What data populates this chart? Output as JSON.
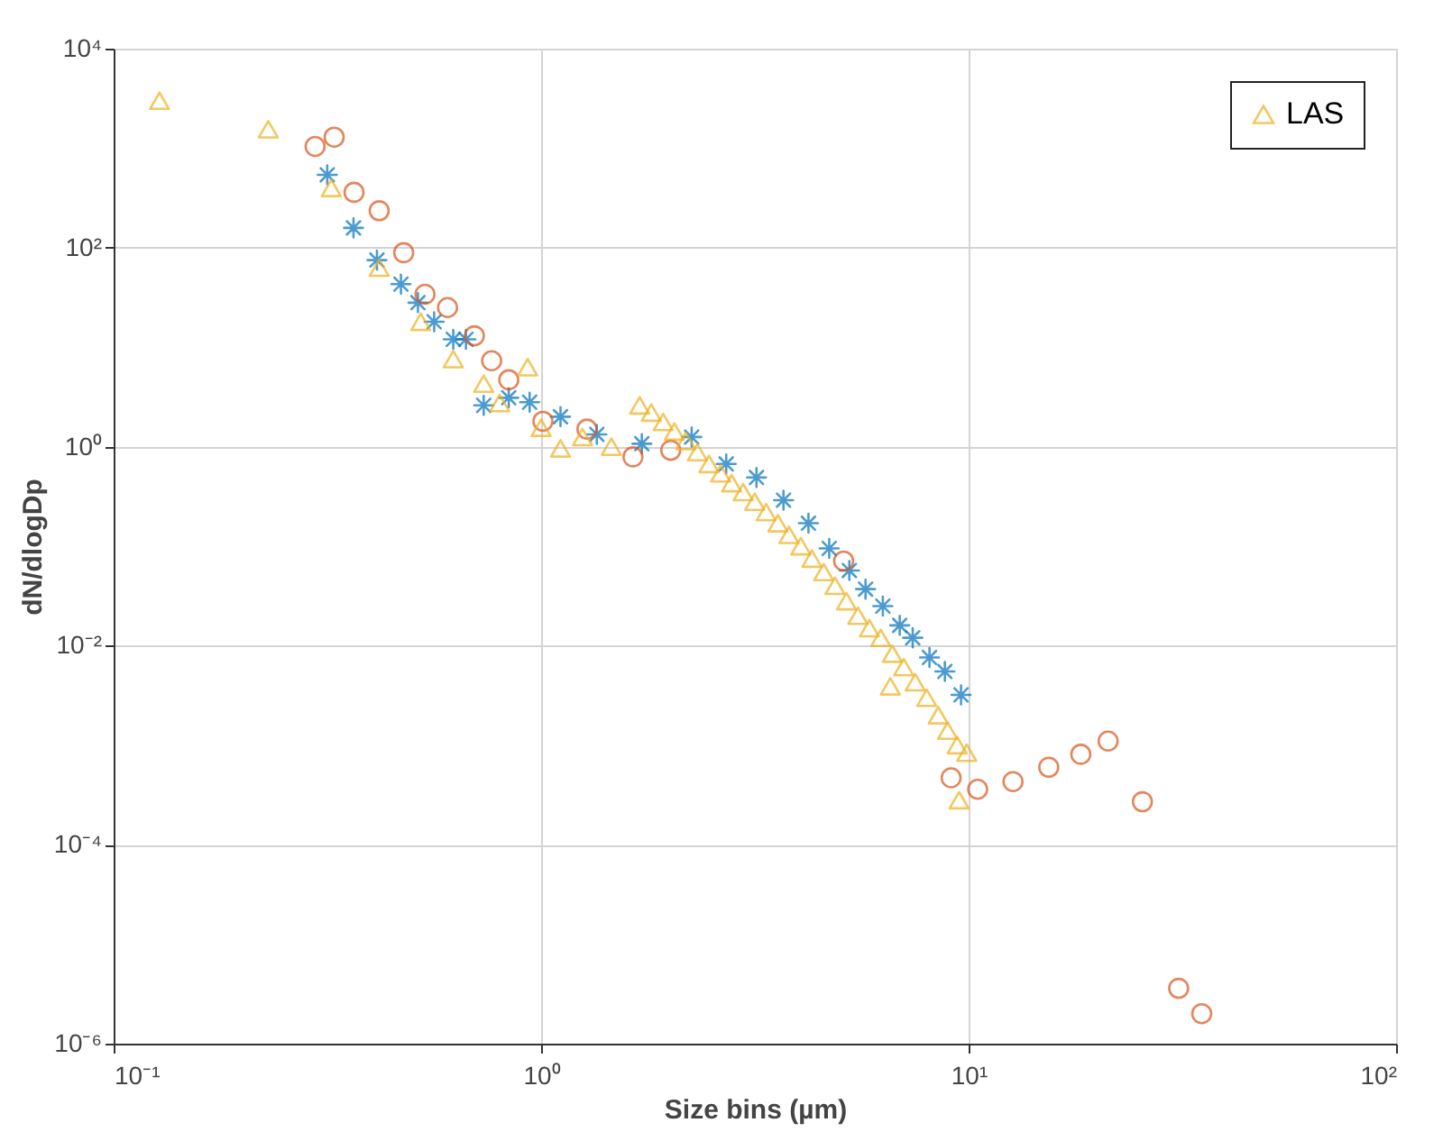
{
  "chart_data": {
    "type": "scatter",
    "xlabel": "Size bins (µm)",
    "ylabel": "dN/dlogDp",
    "log": "xy",
    "grid": true,
    "legend": "top right",
    "xlim": [
      0.1,
      100
    ],
    "xticks": [
      {
        "value": 0.1,
        "label": "10⁻¹"
      },
      {
        "value": 1,
        "label": "10⁰"
      },
      {
        "value": 10,
        "label": "10¹"
      },
      {
        "value": 100,
        "label": "10²"
      }
    ],
    "ylim": [
      1e-06,
      10000
    ],
    "yticks": [
      {
        "value": 1e-06,
        "label": "10⁻⁶"
      },
      {
        "value": 0.0001,
        "label": "10⁻⁴"
      },
      {
        "value": 0.01,
        "label": "10⁻²"
      },
      {
        "value": 1,
        "label": "10⁰"
      },
      {
        "value": 100,
        "label": "10²"
      },
      {
        "value": 10000,
        "label": "10⁴"
      }
    ],
    "series": [
      {
        "color": "#0072bd",
        "marker": "cross",
        "x": [
          0.316,
          0.364,
          0.413,
          0.47,
          0.515,
          0.562,
          0.623,
          0.667,
          0.734,
          0.84,
          0.94,
          1.11,
          1.35,
          1.72,
          2.25,
          2.71,
          3.19,
          3.69,
          4.22,
          4.72,
          5.26,
          5.74,
          6.3,
          6.9,
          7.4,
          8.1,
          8.8,
          9.6
        ],
        "values": [
          540,
          158,
          75,
          43,
          28,
          18,
          12,
          12,
          2.6,
          3.1,
          2.8,
          2.0,
          1.33,
          1.07,
          1.25,
          0.67,
          0.49,
          0.29,
          0.17,
          0.095,
          0.057,
          0.037,
          0.025,
          0.016,
          0.012,
          0.0076,
          0.0055,
          0.0032
        ]
      },
      {
        "color": "#d95319",
        "marker": "circle",
        "x": [
          0.296,
          0.328,
          0.365,
          0.418,
          0.477,
          0.535,
          0.604,
          0.698,
          0.766,
          0.84,
          1.01,
          1.28,
          1.64,
          2.01,
          5.1,
          9.1,
          10.5,
          12.7,
          15.4,
          18.3,
          21.2,
          25.5,
          31.0,
          35.1
        ],
        "values": [
          1040,
          1290,
          360,
          235,
          89,
          34,
          25,
          13,
          7.3,
          4.7,
          1.8,
          1.5,
          0.79,
          0.92,
          0.071,
          0.00047,
          0.00036,
          0.00043,
          0.0006,
          0.00081,
          0.0011,
          0.00027,
          3.6e-06,
          2e-06
        ]
      },
      {
        "name": "LAS",
        "color": "#edb120",
        "marker": "triangle",
        "x": [
          0.128,
          0.23,
          0.323,
          0.418,
          0.523,
          0.623,
          0.734,
          0.93,
          0.8,
          1.0,
          1.11,
          1.25,
          1.46,
          1.7,
          1.81,
          1.93,
          2.05,
          2.18,
          2.32,
          2.47,
          2.63,
          2.79,
          2.97,
          3.16,
          3.36,
          3.58,
          3.8,
          4.05,
          4.3,
          4.58,
          4.87,
          5.18,
          5.51,
          5.86,
          6.23,
          6.56,
          6.63,
          7.05,
          7.5,
          7.98,
          8.49,
          8.93,
          9.4,
          9.9,
          9.5
        ],
        "values": [
          3000,
          1550,
          398,
          63,
          18,
          7.6,
          4.3,
          6.3,
          2.75,
          1.55,
          0.96,
          1.25,
          1.0,
          2.6,
          2.2,
          1.77,
          1.42,
          1.14,
          0.88,
          0.67,
          0.54,
          0.43,
          0.35,
          0.28,
          0.22,
          0.17,
          0.13,
          0.1,
          0.075,
          0.055,
          0.04,
          0.028,
          0.02,
          0.015,
          0.012,
          0.0039,
          0.0083,
          0.0061,
          0.0043,
          0.003,
          0.002,
          0.0014,
          0.001,
          0.00084,
          0.00028
        ]
      }
    ]
  }
}
